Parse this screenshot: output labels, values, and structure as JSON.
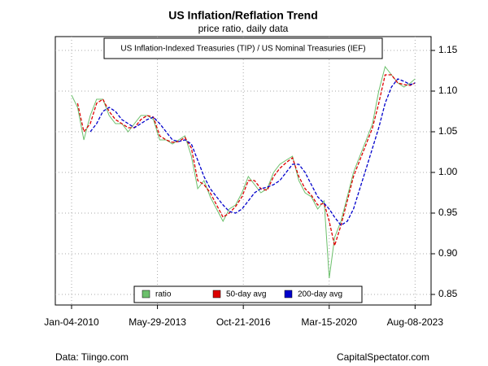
{
  "chart_data": {
    "type": "line",
    "title": "US Inflation/Reflation Trend",
    "subtitle": "price ratio, daily data",
    "annotation": "US Inflation-Indexed Treasuries (TIP) / US Nominal Treasuries (IEF)",
    "source": "Data: Tiingo.com",
    "credit": "CapitalSpectator.com",
    "x": [
      "2010-01-04",
      "2010-04-01",
      "2010-07-01",
      "2010-10-01",
      "2011-01-01",
      "2011-04-01",
      "2011-07-01",
      "2011-10-01",
      "2012-01-01",
      "2012-04-01",
      "2012-07-01",
      "2012-10-01",
      "2013-01-01",
      "2013-04-01",
      "2013-07-01",
      "2013-10-01",
      "2014-01-01",
      "2014-04-01",
      "2014-07-01",
      "2014-10-01",
      "2015-01-01",
      "2015-04-01",
      "2015-07-01",
      "2015-10-01",
      "2016-01-01",
      "2016-04-01",
      "2016-07-01",
      "2016-10-01",
      "2017-01-01",
      "2017-04-01",
      "2017-07-01",
      "2017-10-01",
      "2018-01-01",
      "2018-04-01",
      "2018-07-01",
      "2018-10-01",
      "2019-01-01",
      "2019-04-01",
      "2019-07-01",
      "2019-10-01",
      "2020-01-01",
      "2020-03-15",
      "2020-06-01",
      "2020-09-01",
      "2020-12-01",
      "2021-03-01",
      "2021-06-01",
      "2021-09-01",
      "2021-12-01",
      "2022-03-01",
      "2022-06-01",
      "2022-09-01",
      "2022-12-01",
      "2023-03-01",
      "2023-06-01",
      "2023-08-08"
    ],
    "series": [
      {
        "name": "ratio",
        "color": "#6cc06c",
        "dashed": false,
        "values": [
          1.095,
          1.08,
          1.04,
          1.07,
          1.09,
          1.09,
          1.07,
          1.06,
          1.06,
          1.05,
          1.06,
          1.07,
          1.07,
          1.065,
          1.04,
          1.04,
          1.035,
          1.04,
          1.045,
          1.02,
          0.98,
          0.99,
          0.97,
          0.955,
          0.94,
          0.955,
          0.96,
          0.975,
          0.995,
          0.985,
          0.975,
          0.98,
          1.0,
          1.01,
          1.015,
          1.02,
          0.99,
          0.975,
          0.97,
          0.955,
          0.965,
          0.87,
          0.92,
          0.94,
          0.97,
          1.0,
          1.02,
          1.04,
          1.06,
          1.1,
          1.13,
          1.12,
          1.11,
          1.105,
          1.11,
          1.115
        ]
      },
      {
        "name": "50-day avg",
        "color": "#dd0000",
        "dashed": true,
        "values": [
          null,
          1.085,
          1.05,
          1.06,
          1.085,
          1.09,
          1.075,
          1.065,
          1.06,
          1.055,
          1.055,
          1.065,
          1.07,
          1.068,
          1.045,
          1.04,
          1.037,
          1.038,
          1.043,
          1.03,
          0.99,
          0.985,
          0.975,
          0.96,
          0.945,
          0.95,
          0.958,
          0.97,
          0.99,
          0.99,
          0.98,
          0.978,
          0.995,
          1.005,
          1.012,
          1.018,
          0.995,
          0.98,
          0.972,
          0.96,
          0.962,
          0.94,
          0.91,
          0.935,
          0.965,
          0.995,
          1.015,
          1.035,
          1.055,
          1.085,
          1.12,
          1.12,
          1.11,
          1.108,
          1.107,
          1.11
        ]
      },
      {
        "name": "200-day avg",
        "color": "#0000cc",
        "dashed": true,
        "values": [
          null,
          null,
          null,
          1.05,
          1.06,
          1.075,
          1.08,
          1.075,
          1.065,
          1.06,
          1.055,
          1.06,
          1.065,
          1.068,
          1.06,
          1.05,
          1.04,
          1.038,
          1.04,
          1.035,
          1.015,
          0.995,
          0.98,
          0.97,
          0.96,
          0.952,
          0.95,
          0.955,
          0.965,
          0.975,
          0.98,
          0.982,
          0.985,
          0.99,
          1.0,
          1.01,
          1.01,
          1.0,
          0.985,
          0.97,
          0.962,
          0.955,
          0.945,
          0.935,
          0.94,
          0.955,
          0.98,
          1.005,
          1.03,
          1.055,
          1.085,
          1.105,
          1.115,
          1.112,
          1.108,
          1.11
        ]
      }
    ],
    "xlim": [
      "2009-05-14",
      "2024-03-26"
    ],
    "xticks": [
      {
        "value": "2010-01-04",
        "label": "Jan-04-2010"
      },
      {
        "value": "2013-05-29",
        "label": "May-29-2013"
      },
      {
        "value": "2016-10-21",
        "label": "Oct-21-2016"
      },
      {
        "value": "2020-03-15",
        "label": "Mar-15-2020"
      },
      {
        "value": "2023-08-08",
        "label": "Aug-08-2023"
      }
    ],
    "ylim": [
      0.837,
      1.167
    ],
    "yticks": [
      0.85,
      {
        "value": 0.9,
        "label": "0.90"
      },
      0.95,
      {
        "value": 1.0,
        "label": "1.00"
      },
      1.05,
      {
        "value": 1.1,
        "label": "1.10"
      },
      1.15
    ],
    "grid": true,
    "legend": "bottom"
  }
}
